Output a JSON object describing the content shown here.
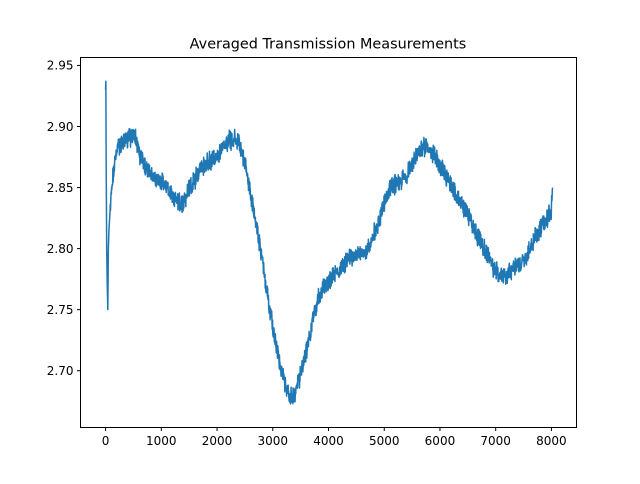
{
  "chart_data": {
    "type": "line",
    "title": "Averaged Transmission Measurements",
    "xlabel": "",
    "ylabel": "",
    "xlim": [
      -450,
      8450
    ],
    "ylim": [
      2.6535,
      2.9565
    ],
    "grid": false,
    "legend": "none",
    "x_ticks": [
      0,
      1000,
      2000,
      3000,
      4000,
      5000,
      6000,
      7000,
      8000
    ],
    "x_tick_labels": [
      "0",
      "1000",
      "2000",
      "3000",
      "4000",
      "5000",
      "6000",
      "7000",
      "8000"
    ],
    "y_ticks": [
      2.7,
      2.75,
      2.8,
      2.85,
      2.9,
      2.95
    ],
    "y_tick_labels": [
      "2.70",
      "2.75",
      "2.80",
      "2.85",
      "2.90",
      "2.95"
    ],
    "series": [
      {
        "color": "#1f77b4",
        "noise_amplitude": 0.006,
        "x": [
          0,
          5,
          10,
          20,
          30,
          40,
          50,
          60,
          80,
          100,
          150,
          200,
          300,
          400,
          500,
          550,
          600,
          700,
          800,
          900,
          1000,
          1100,
          1200,
          1300,
          1400,
          1500,
          1600,
          1700,
          1800,
          1900,
          2000,
          2100,
          2200,
          2300,
          2400,
          2500,
          2600,
          2700,
          2800,
          2900,
          3000,
          3100,
          3200,
          3300,
          3400,
          3500,
          3600,
          3700,
          3800,
          3900,
          4000,
          4100,
          4200,
          4300,
          4400,
          4500,
          4600,
          4700,
          4800,
          4900,
          5000,
          5100,
          5200,
          5300,
          5400,
          5500,
          5600,
          5700,
          5800,
          5900,
          6000,
          6100,
          6200,
          6300,
          6400,
          6500,
          6600,
          6700,
          6800,
          6900,
          7000,
          7100,
          7200,
          7300,
          7400,
          7500,
          7600,
          7700,
          7800,
          7900,
          8000,
          8020
        ],
        "y": [
          2.93,
          2.937,
          2.875,
          2.8,
          2.77,
          2.75,
          2.8,
          2.815,
          2.83,
          2.845,
          2.865,
          2.88,
          2.888,
          2.89,
          2.893,
          2.89,
          2.878,
          2.868,
          2.862,
          2.857,
          2.855,
          2.85,
          2.843,
          2.837,
          2.838,
          2.848,
          2.857,
          2.864,
          2.87,
          2.873,
          2.876,
          2.882,
          2.888,
          2.89,
          2.885,
          2.87,
          2.845,
          2.82,
          2.795,
          2.765,
          2.735,
          2.71,
          2.692,
          2.678,
          2.682,
          2.697,
          2.715,
          2.738,
          2.758,
          2.768,
          2.773,
          2.778,
          2.783,
          2.788,
          2.792,
          2.795,
          2.795,
          2.798,
          2.81,
          2.822,
          2.838,
          2.848,
          2.853,
          2.855,
          2.86,
          2.868,
          2.878,
          2.883,
          2.88,
          2.876,
          2.868,
          2.86,
          2.852,
          2.842,
          2.835,
          2.828,
          2.818,
          2.808,
          2.8,
          2.79,
          2.782,
          2.777,
          2.778,
          2.782,
          2.785,
          2.79,
          2.798,
          2.808,
          2.816,
          2.822,
          2.832,
          2.85
        ]
      }
    ]
  }
}
